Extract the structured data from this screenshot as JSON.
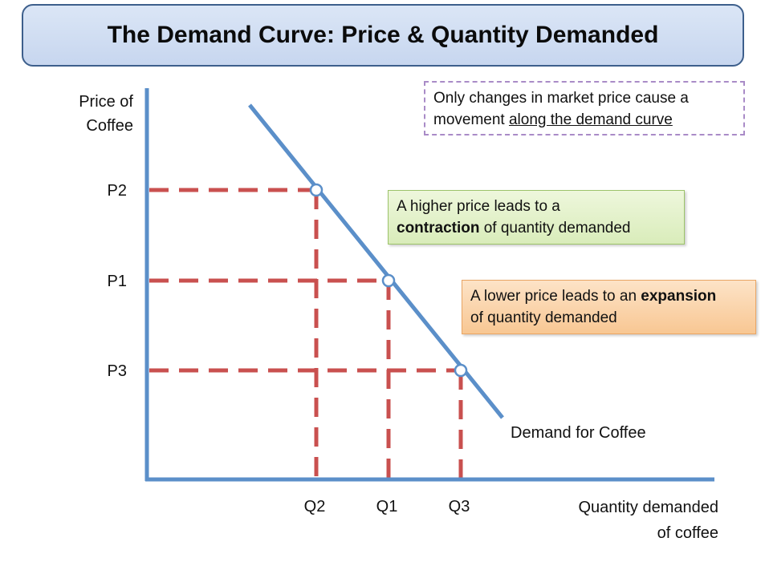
{
  "title": "The Demand Curve: Price & Quantity Demanded",
  "y_axis_label": [
    "Price of",
    "Coffee"
  ],
  "x_axis_label": [
    "Quantity demanded",
    "of coffee"
  ],
  "price_levels": [
    "P2",
    "P1",
    "P3"
  ],
  "quantity_levels": [
    "Q2",
    "Q1",
    "Q3"
  ],
  "curve_label": "Demand for Coffee",
  "note": {
    "line1": "Only changes in market price cause a",
    "line2_pre": "movement ",
    "line2_underlined": "along the demand curve"
  },
  "contraction_box": {
    "line1": "A higher price leads to a",
    "bold": "contraction",
    "rest": " of quantity demanded"
  },
  "expansion_box": {
    "line1_pre": "A lower price leads to an ",
    "bold": "expansion",
    "line2": "of quantity demanded"
  },
  "colors": {
    "axis": "#5b8fc9",
    "curve": "#5b8fc9",
    "dashed_guides": "#c9504f",
    "title_border": "#3d5f8c"
  }
}
